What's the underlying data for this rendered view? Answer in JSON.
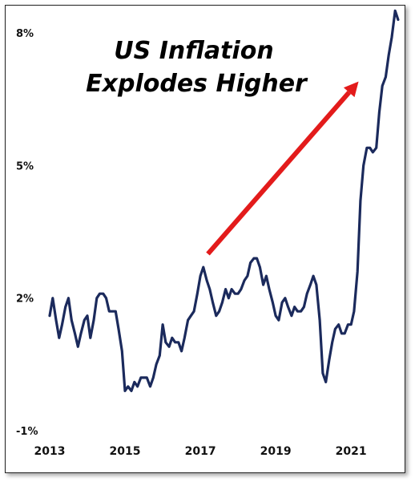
{
  "chart_data": {
    "type": "line",
    "title_lines": [
      "US Inflation",
      "Explodes Higher"
    ],
    "xlabel": "",
    "ylabel": "",
    "y_ticks": [
      "8%",
      "5%",
      "2%",
      "-1%"
    ],
    "y_tick_values": [
      8,
      5,
      2,
      -1
    ],
    "x_ticks": [
      "2013",
      "2015",
      "2017",
      "2019",
      "2021"
    ],
    "x_tick_values": [
      2013,
      2015,
      2017,
      2019,
      2021
    ],
    "xlim": [
      2013,
      2022.4
    ],
    "ylim": [
      -1,
      8
    ],
    "grid": false,
    "line_color": "#1b2a5c",
    "arrow_color": "#e31b1b",
    "series": [
      {
        "x": [
          2013.0,
          2013.08,
          2013.17,
          2013.25,
          2013.33,
          2013.42,
          2013.5,
          2013.58,
          2013.67,
          2013.75,
          2013.83,
          2013.92,
          2014.0,
          2014.08,
          2014.17,
          2014.25,
          2014.33,
          2014.42,
          2014.5,
          2014.58,
          2014.67,
          2014.75,
          2014.83,
          2014.92,
          2015.0,
          2015.08,
          2015.17,
          2015.25,
          2015.33,
          2015.42,
          2015.5,
          2015.58,
          2015.67,
          2015.75,
          2015.83,
          2015.92,
          2016.0,
          2016.08,
          2016.17,
          2016.25,
          2016.33,
          2016.42,
          2016.5,
          2016.58,
          2016.67,
          2016.75,
          2016.83,
          2016.92,
          2017.0,
          2017.08,
          2017.17,
          2017.25,
          2017.33,
          2017.42,
          2017.5,
          2017.58,
          2017.67,
          2017.75,
          2017.83,
          2017.92,
          2018.0,
          2018.08,
          2018.17,
          2018.25,
          2018.33,
          2018.42,
          2018.5,
          2018.58,
          2018.67,
          2018.75,
          2018.83,
          2018.92,
          2019.0,
          2019.08,
          2019.17,
          2019.25,
          2019.33,
          2019.42,
          2019.5,
          2019.58,
          2019.67,
          2019.75,
          2019.83,
          2019.92,
          2020.0,
          2020.08,
          2020.17,
          2020.25,
          2020.33,
          2020.42,
          2020.5,
          2020.58,
          2020.67,
          2020.75,
          2020.83,
          2020.92,
          2021.0,
          2021.08,
          2021.17,
          2021.25,
          2021.33,
          2021.42,
          2021.5,
          2021.58,
          2021.67,
          2021.75,
          2021.83,
          2021.92,
          2022.0,
          2022.08,
          2022.17,
          2022.25
        ],
        "values": [
          1.6,
          2.0,
          1.5,
          1.1,
          1.4,
          1.8,
          2.0,
          1.5,
          1.2,
          0.9,
          1.2,
          1.5,
          1.6,
          1.1,
          1.5,
          2.0,
          2.1,
          2.1,
          2.0,
          1.7,
          1.7,
          1.7,
          1.3,
          0.8,
          -0.1,
          0.0,
          -0.1,
          0.1,
          0.0,
          0.2,
          0.2,
          0.2,
          0.0,
          0.2,
          0.5,
          0.7,
          1.4,
          1.0,
          0.9,
          1.1,
          1.0,
          1.0,
          0.8,
          1.1,
          1.5,
          1.6,
          1.7,
          2.1,
          2.5,
          2.7,
          2.4,
          2.2,
          1.9,
          1.6,
          1.7,
          1.9,
          2.2,
          2.0,
          2.2,
          2.1,
          2.1,
          2.2,
          2.4,
          2.5,
          2.8,
          2.9,
          2.9,
          2.7,
          2.3,
          2.5,
          2.2,
          1.9,
          1.6,
          1.5,
          1.9,
          2.0,
          1.8,
          1.6,
          1.8,
          1.7,
          1.7,
          1.8,
          2.1,
          2.3,
          2.5,
          2.3,
          1.5,
          0.3,
          0.1,
          0.6,
          1.0,
          1.3,
          1.4,
          1.2,
          1.2,
          1.4,
          1.4,
          1.7,
          2.6,
          4.2,
          5.0,
          5.4,
          5.4,
          5.3,
          5.4,
          6.2,
          6.8,
          7.0,
          7.5,
          7.9,
          8.5,
          8.3
        ]
      }
    ],
    "arrow": {
      "from": {
        "x": 2017.2,
        "y": 3.0
      },
      "to": {
        "x": 2021.2,
        "y": 6.9
      }
    }
  }
}
